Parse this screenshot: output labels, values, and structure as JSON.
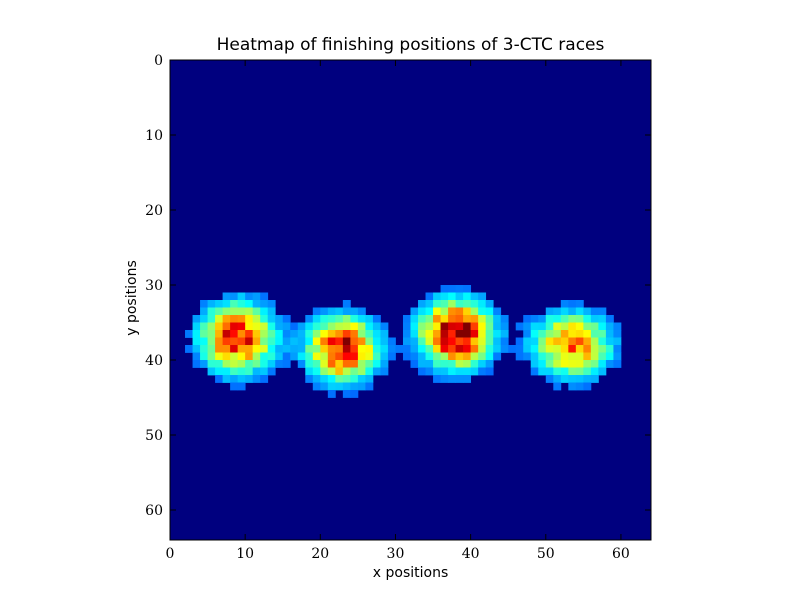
{
  "chart_data": {
    "type": "heatmap",
    "title": "Heatmap of finishing positions of 3-CTC races",
    "xlabel": "x positions",
    "ylabel": "y positions",
    "xlim": [
      0,
      64
    ],
    "ylim": [
      64,
      0
    ],
    "xticks": [
      0,
      10,
      20,
      30,
      40,
      50,
      60
    ],
    "yticks": [
      0,
      10,
      20,
      30,
      40,
      50,
      60
    ],
    "colormap": "jet",
    "background_color": "#00007f",
    "clusters": [
      {
        "center_x": 9,
        "center_y": 37,
        "peak": 0.86,
        "spread_x": 3.4,
        "spread_y": 3.2
      },
      {
        "center_x": 23,
        "center_y": 38.5,
        "peak": 0.9,
        "spread_x": 3.2,
        "spread_y": 3.0
      },
      {
        "center_x": 38,
        "center_y": 36.5,
        "peak": 1.0,
        "spread_x": 3.3,
        "spread_y": 3.1
      },
      {
        "center_x": 53.5,
        "center_y": 38,
        "peak": 0.74,
        "spread_x": 3.6,
        "spread_y": 3.0
      }
    ]
  }
}
